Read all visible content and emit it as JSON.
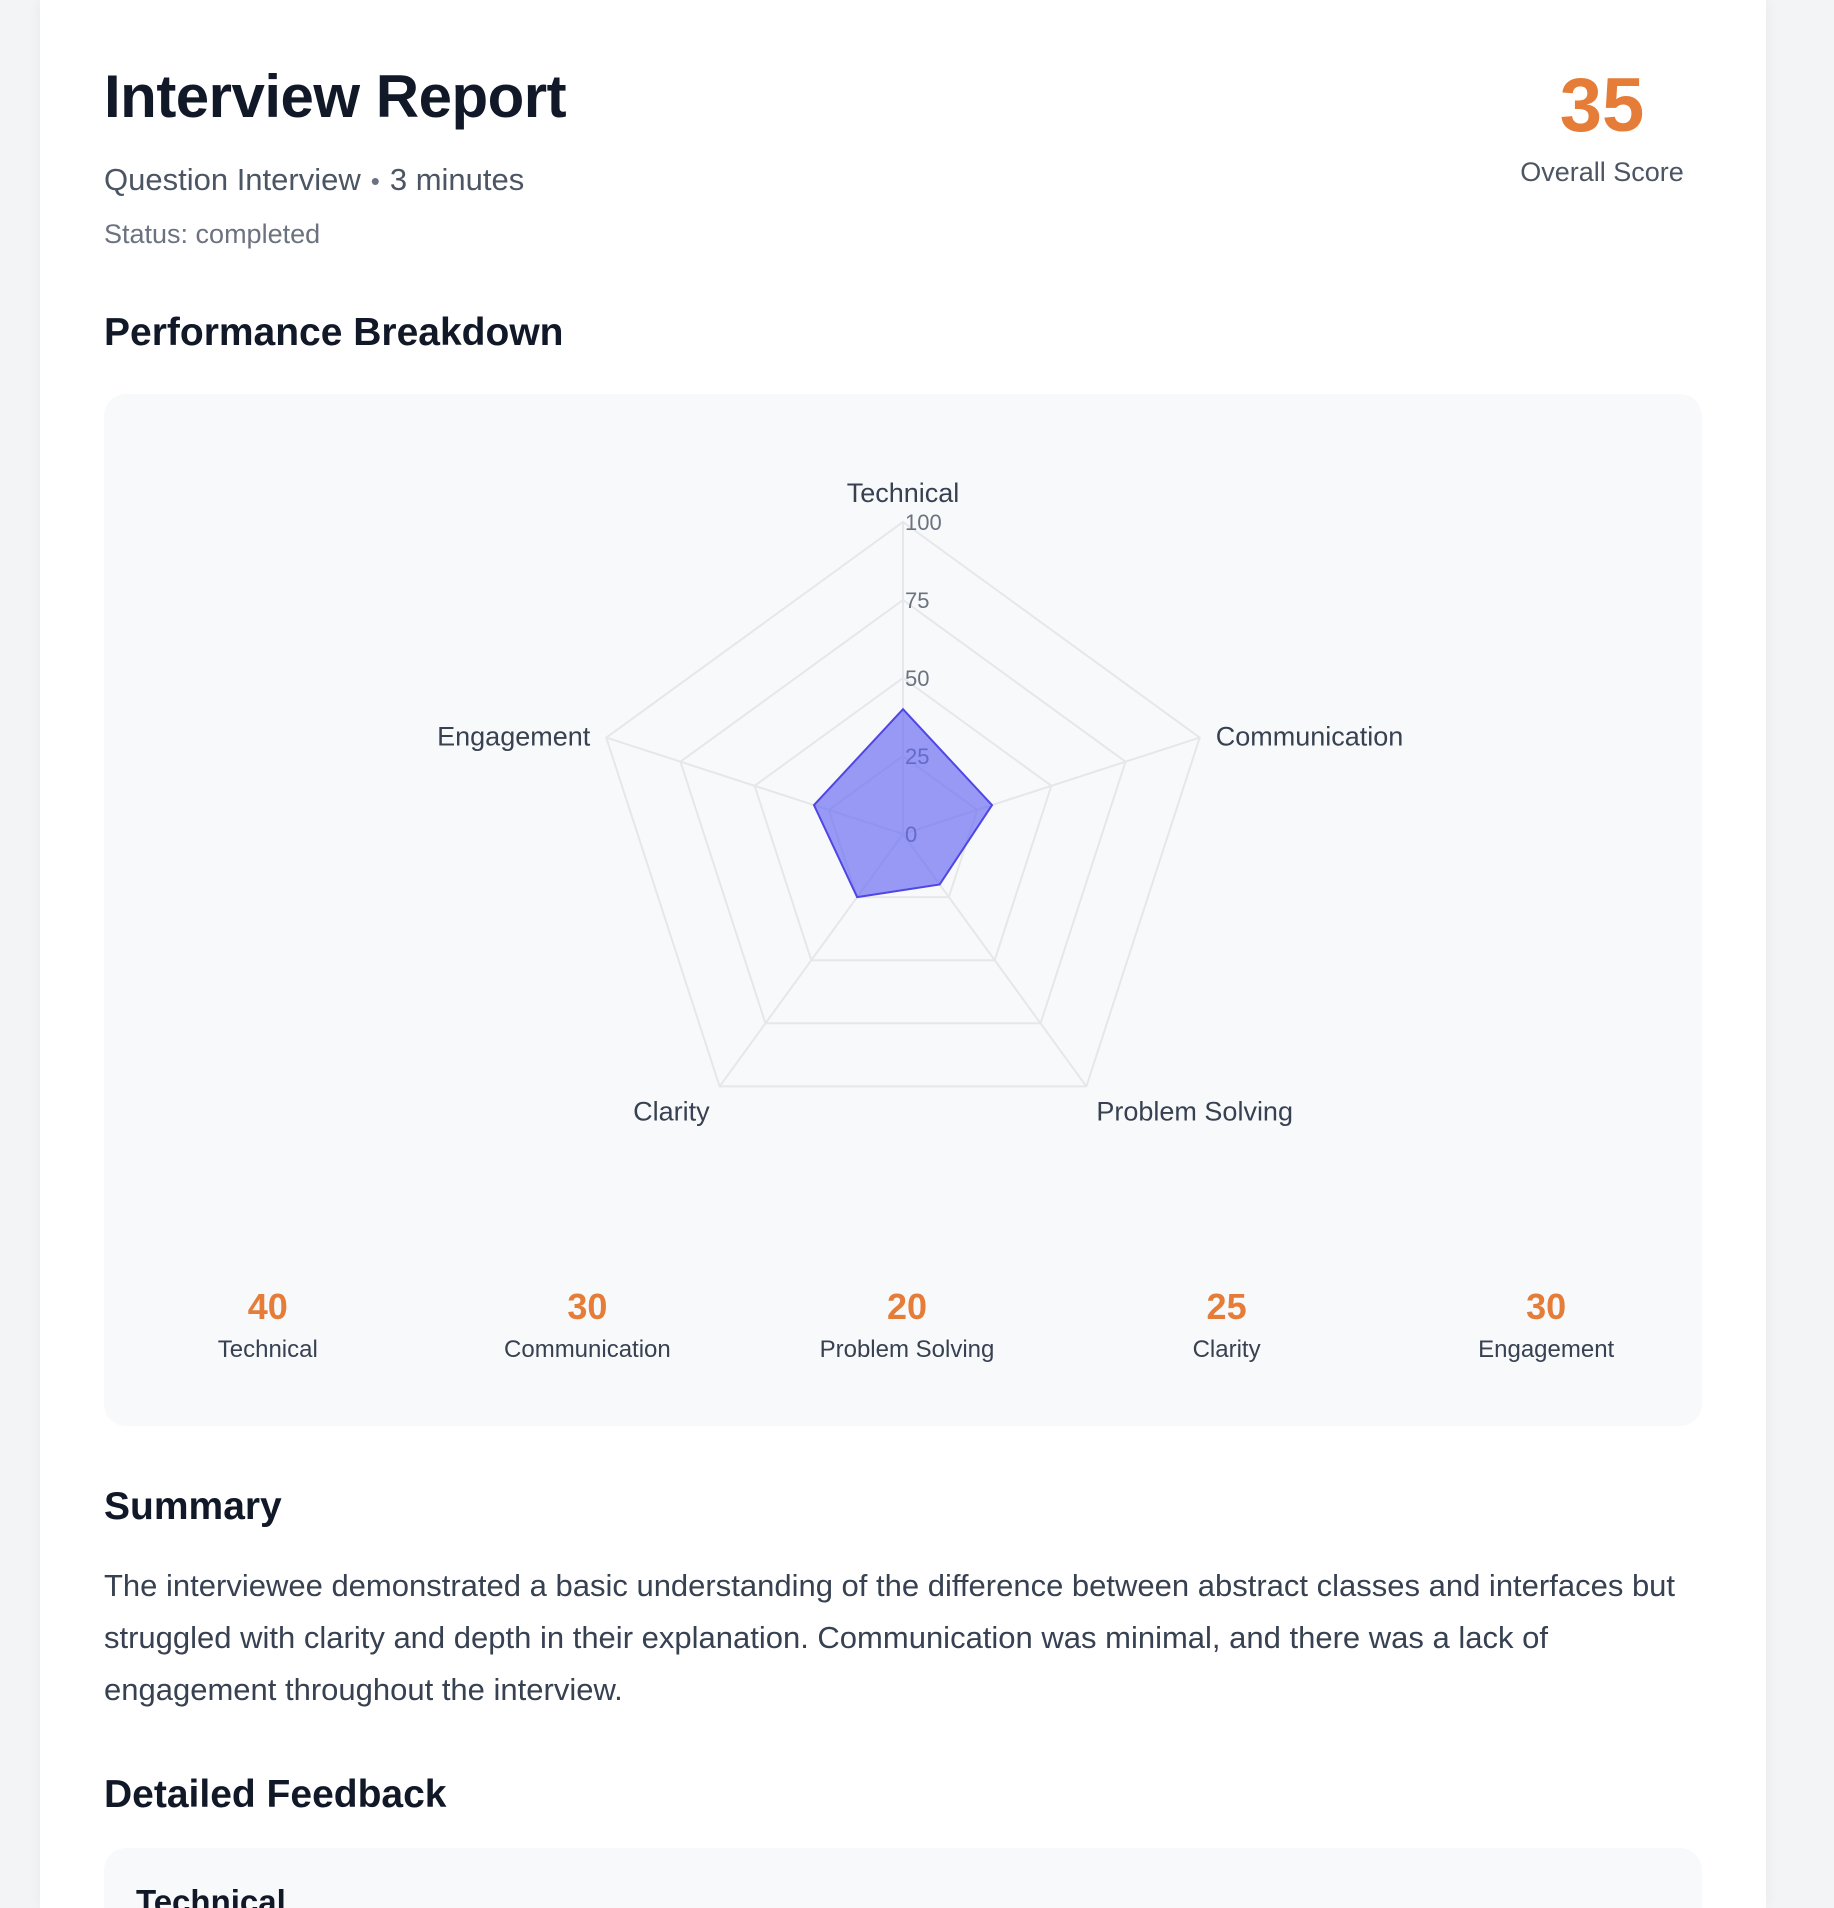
{
  "header": {
    "title": "Interview Report",
    "interview_type": "Question Interview",
    "duration": "3 minutes",
    "separator": "•",
    "status": "Status: completed"
  },
  "overall": {
    "score": "35",
    "label": "Overall Score"
  },
  "breakdown": {
    "title": "Performance Breakdown"
  },
  "chart_data": {
    "type": "radar",
    "axes": [
      "Technical",
      "Communication",
      "Problem Solving",
      "Clarity",
      "Engagement"
    ],
    "values": [
      40,
      30,
      20,
      25,
      30
    ],
    "ticks": [
      0,
      25,
      50,
      75,
      100
    ],
    "range": [
      0,
      100
    ],
    "fill_color": "#6366f1",
    "grid_color": "#e5e7eb"
  },
  "scores": [
    {
      "value": "40",
      "label": "Technical"
    },
    {
      "value": "30",
      "label": "Communication"
    },
    {
      "value": "20",
      "label": "Problem Solving"
    },
    {
      "value": "25",
      "label": "Clarity"
    },
    {
      "value": "30",
      "label": "Engagement"
    }
  ],
  "summary": {
    "title": "Summary",
    "text": "The interviewee demonstrated a basic understanding of the difference between abstract classes and interfaces but struggled with clarity and depth in their explanation. Communication was minimal, and there was a lack of engagement throughout the interview."
  },
  "feedback": {
    "title": "Detailed Feedback",
    "first_item_title": "Technical"
  },
  "colors": {
    "accent": "#e57c37",
    "chart_fill": "#6366f1"
  }
}
